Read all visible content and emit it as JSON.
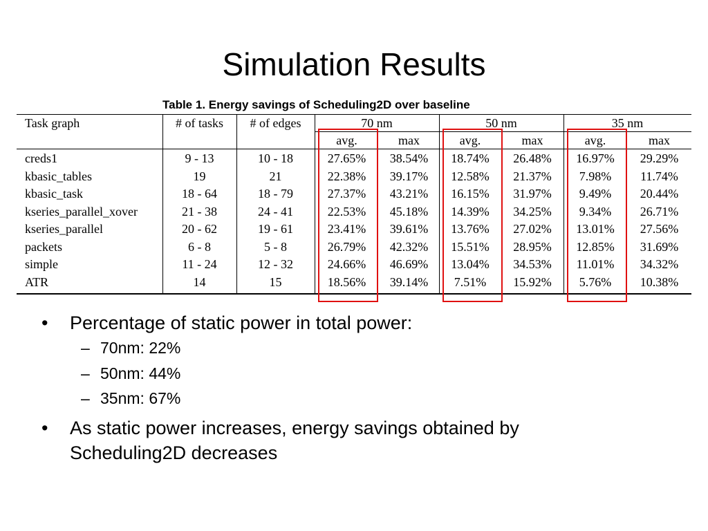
{
  "title": "Simulation Results",
  "table": {
    "caption": "Table 1. Energy savings of Scheduling2D over baseline",
    "header": [
      "Task graph",
      "# of tasks",
      "# of edges",
      "70 nm",
      "50 nm",
      "35 nm"
    ],
    "subheader": [
      "avg.",
      "max",
      "avg.",
      "max",
      "avg.",
      "max"
    ],
    "rows": [
      [
        "creds1",
        "9 - 13",
        "10 - 18",
        "27.65%",
        "38.54%",
        "18.74%",
        "26.48%",
        "16.97%",
        "29.29%"
      ],
      [
        "kbasic_tables",
        "19",
        "21",
        "22.38%",
        "39.17%",
        "12.58%",
        "21.37%",
        "7.98%",
        "11.74%"
      ],
      [
        "kbasic_task",
        "18 - 64",
        "18 - 79",
        "27.37%",
        "43.21%",
        "16.15%",
        "31.97%",
        "9.49%",
        "20.44%"
      ],
      [
        "kseries_parallel_xover",
        "21 - 38",
        "24 - 41",
        "22.53%",
        "45.18%",
        "14.39%",
        "34.25%",
        "9.34%",
        "26.71%"
      ],
      [
        "kseries_parallel",
        "20 - 62",
        "19 - 61",
        "23.41%",
        "39.61%",
        "13.76%",
        "27.02%",
        "13.01%",
        "27.56%"
      ],
      [
        "packets",
        "6 - 8",
        "5 - 8",
        "26.79%",
        "42.32%",
        "15.51%",
        "28.95%",
        "12.85%",
        "31.69%"
      ],
      [
        "simple",
        "11 - 24",
        "12 - 32",
        "24.66%",
        "46.69%",
        "13.04%",
        "34.53%",
        "11.01%",
        "34.32%"
      ],
      [
        "ATR",
        "14",
        "15",
        "18.56%",
        "39.14%",
        "7.51%",
        "15.92%",
        "5.76%",
        "10.38%"
      ]
    ]
  },
  "bullets": [
    {
      "text": "Percentage of static power in total power:",
      "items": [
        "70nm: 22%",
        "50nm: 44%",
        "35nm: 67%"
      ]
    },
    {
      "text": "As static power increases, energy savings obtained by Scheduling2D decreases"
    }
  ]
}
